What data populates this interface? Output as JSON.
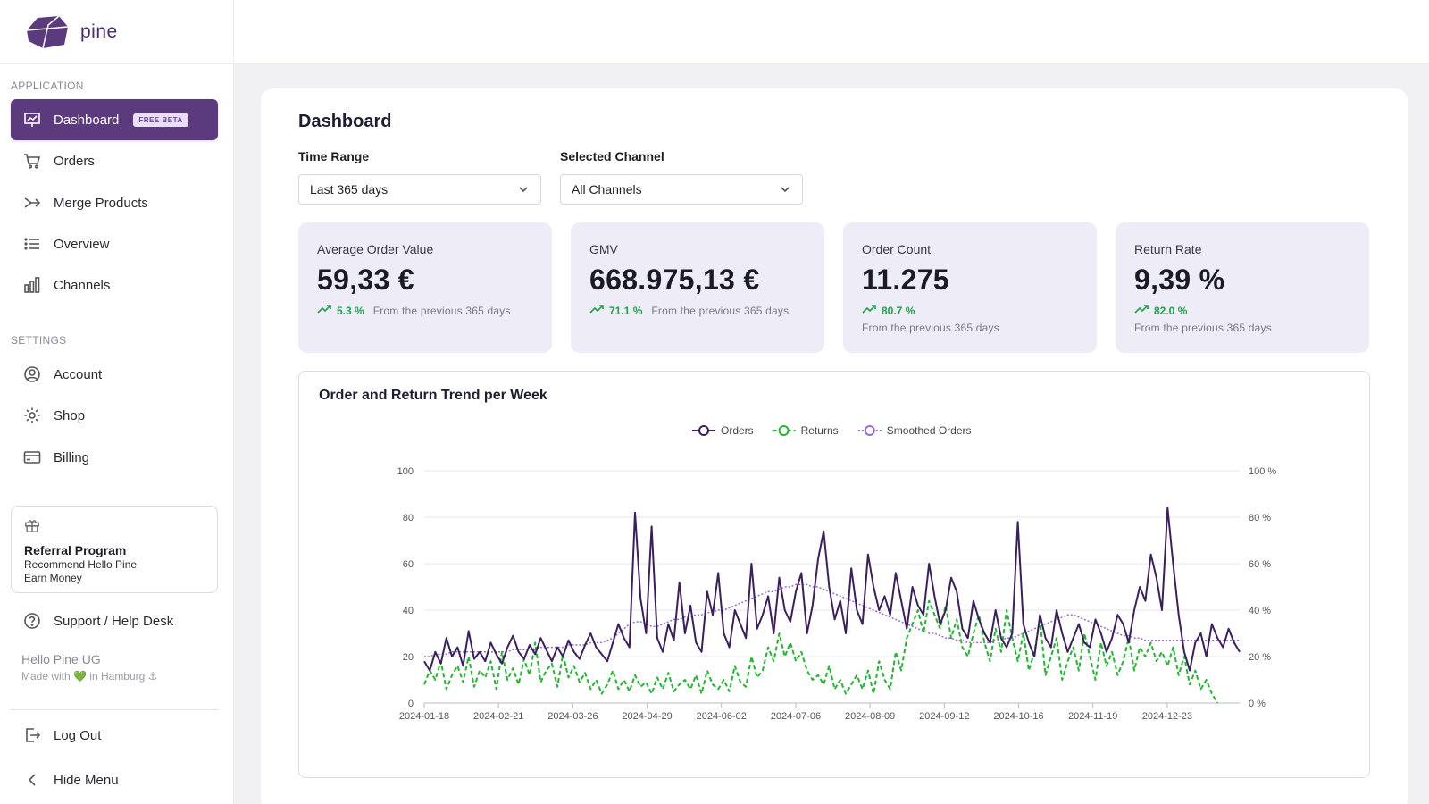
{
  "app": {
    "name": "pine"
  },
  "sidebar": {
    "application_label": "APPLICATION",
    "settings_label": "SETTINGS",
    "items": [
      {
        "label": "Dashboard",
        "badge": "FREE BETA",
        "icon": "presentation-chart-icon"
      },
      {
        "label": "Orders",
        "icon": "cart-icon"
      },
      {
        "label": "Merge Products",
        "icon": "merge-arrows-icon"
      },
      {
        "label": "Overview",
        "icon": "list-icon"
      },
      {
        "label": "Channels",
        "icon": "bar-chart-icon"
      }
    ],
    "settings_items": [
      {
        "label": "Account",
        "icon": "user-circle-icon"
      },
      {
        "label": "Shop",
        "icon": "gear-icon"
      },
      {
        "label": "Billing",
        "icon": "credit-card-icon"
      }
    ],
    "referral": {
      "title": "Referral Program",
      "line1": "Recommend Hello Pine",
      "line2": "Earn Money"
    },
    "support_label": "Support / Help Desk",
    "company": {
      "name": "Hello Pine UG",
      "tagline": "Made with 💚 in Hamburg ⚓"
    },
    "logout_label": "Log Out",
    "hide_menu_label": "Hide Menu"
  },
  "main": {
    "title": "Dashboard",
    "filters": {
      "time_range_label": "Time Range",
      "time_range_value": "Last 365 days",
      "channel_label": "Selected Channel",
      "channel_value": "All Channels"
    },
    "kpis": [
      {
        "label": "Average Order Value",
        "value": "59,33 €",
        "change": "5.3 %",
        "note": "From the previous 365 days"
      },
      {
        "label": "GMV",
        "value": "668.975,13 €",
        "change": "71.1 %",
        "note": "From the previous 365 days"
      },
      {
        "label": "Order Count",
        "value": "11.275",
        "change": "80.7 %",
        "note": "From the previous 365 days"
      },
      {
        "label": "Return Rate",
        "value": "9,39 %",
        "change": "82.0 %",
        "note": "From the previous 365 days"
      }
    ],
    "chart_title": "Order and Return Trend per Week"
  },
  "colors": {
    "accent": "#5b3a7e",
    "orders": "#3b1f5e",
    "returns": "#1fb82e",
    "smoothed": "#9a6ad0",
    "positive": "#1ea34a"
  },
  "chart_data": {
    "type": "line",
    "title": "Order and Return Trend per Week",
    "x_ticks": [
      "2024-01-18",
      "2024-02-21",
      "2024-03-26",
      "2024-04-29",
      "2024-06-02",
      "2024-07-06",
      "2024-08-09",
      "2024-09-12",
      "2024-10-16",
      "2024-11-19",
      "2024-12-23"
    ],
    "ylim_left": [
      0,
      100
    ],
    "y_ticks_left": [
      "0",
      "20",
      "40",
      "60",
      "80",
      "100"
    ],
    "ylim_right": [
      0,
      100
    ],
    "y_ticks_right": [
      "0 %",
      "20 %",
      "40 %",
      "60 %",
      "80 %",
      "100 %"
    ],
    "legend": {
      "position": "top-center"
    },
    "grid": true,
    "series": [
      {
        "name": "Orders",
        "axis": "left",
        "style": "solid",
        "values": [
          18,
          14,
          22,
          17,
          28,
          20,
          24,
          16,
          31,
          19,
          22,
          18,
          26,
          21,
          17,
          24,
          29,
          22,
          19,
          25,
          21,
          28,
          23,
          18,
          24,
          20,
          27,
          22,
          19,
          25,
          30,
          24,
          21,
          18,
          26,
          34,
          28,
          24,
          82,
          45,
          30,
          76,
          28,
          22,
          34,
          27,
          52,
          30,
          42,
          26,
          22,
          48,
          38,
          56,
          30,
          24,
          40,
          34,
          28,
          60,
          32,
          38,
          46,
          30,
          54,
          40,
          35,
          48,
          56,
          30,
          42,
          62,
          74,
          50,
          36,
          44,
          30,
          58,
          40,
          34,
          64,
          50,
          40,
          46,
          38,
          56,
          44,
          32,
          50,
          42,
          38,
          60,
          46,
          34,
          40,
          54,
          48,
          32,
          28,
          44,
          36,
          30,
          26,
          40,
          28,
          24,
          30,
          78,
          34,
          26,
          20,
          38,
          28,
          24,
          40,
          30,
          22,
          28,
          34,
          26,
          24,
          36,
          30,
          22,
          28,
          38,
          34,
          26,
          40,
          50,
          44,
          64,
          54,
          40,
          84,
          60,
          38,
          22,
          14,
          26,
          30,
          20,
          34,
          28,
          24,
          32,
          26,
          22
        ]
      },
      {
        "name": "Returns",
        "axis": "right",
        "style": "dashed",
        "values": [
          8,
          14,
          10,
          18,
          6,
          12,
          16,
          9,
          20,
          7,
          14,
          11,
          18,
          6,
          22,
          10,
          15,
          8,
          19,
          12,
          26,
          9,
          14,
          17,
          7,
          21,
          11,
          16,
          9,
          13,
          6,
          10,
          4,
          8,
          14,
          6,
          10,
          5,
          12,
          7,
          9,
          4,
          11,
          6,
          13,
          5,
          8,
          10,
          6,
          12,
          4,
          14,
          8,
          6,
          10,
          5,
          16,
          9,
          7,
          20,
          11,
          14,
          24,
          18,
          30,
          20,
          26,
          18,
          22,
          14,
          10,
          12,
          8,
          16,
          6,
          10,
          4,
          8,
          12,
          6,
          14,
          4,
          18,
          10,
          6,
          22,
          14,
          28,
          34,
          40,
          30,
          44,
          38,
          32,
          42,
          28,
          36,
          24,
          20,
          30,
          38,
          26,
          18,
          32,
          22,
          40,
          28,
          18,
          30,
          14,
          22,
          36,
          12,
          20,
          28,
          10,
          18,
          24,
          14,
          30,
          20,
          10,
          26,
          16,
          22,
          12,
          18,
          28,
          14,
          24,
          20,
          26,
          18,
          22,
          16,
          24,
          12,
          20,
          8,
          14,
          6,
          10,
          4,
          0
        ]
      },
      {
        "name": "Smoothed Orders",
        "axis": "left",
        "style": "dotted",
        "values": [
          20,
          20,
          21,
          21,
          21,
          22,
          22,
          22,
          22,
          22,
          22,
          22,
          22,
          22,
          22,
          22,
          23,
          23,
          23,
          23,
          23,
          24,
          24,
          24,
          24,
          24,
          25,
          25,
          25,
          25,
          26,
          26,
          26,
          27,
          28,
          30,
          32,
          34,
          35,
          35,
          34,
          33,
          33,
          34,
          35,
          36,
          36,
          37,
          37,
          38,
          38,
          39,
          39,
          40,
          40,
          41,
          42,
          43,
          44,
          45,
          46,
          47,
          48,
          48,
          49,
          50,
          50,
          51,
          51,
          51,
          50,
          50,
          49,
          48,
          47,
          46,
          45,
          44,
          43,
          42,
          41,
          40,
          39,
          38,
          37,
          36,
          35,
          34,
          33,
          32,
          31,
          30,
          30,
          29,
          28,
          28,
          27,
          27,
          26,
          26,
          26,
          26,
          26,
          27,
          27,
          28,
          28,
          29,
          30,
          31,
          32,
          33,
          34,
          35,
          36,
          37,
          38,
          38,
          37,
          36,
          35,
          34,
          33,
          32,
          31,
          30,
          29,
          29,
          28,
          28,
          27,
          27,
          27,
          27,
          27,
          27,
          27,
          27,
          27,
          27,
          27,
          27,
          27,
          27,
          27,
          27,
          27,
          27
        ]
      }
    ]
  }
}
